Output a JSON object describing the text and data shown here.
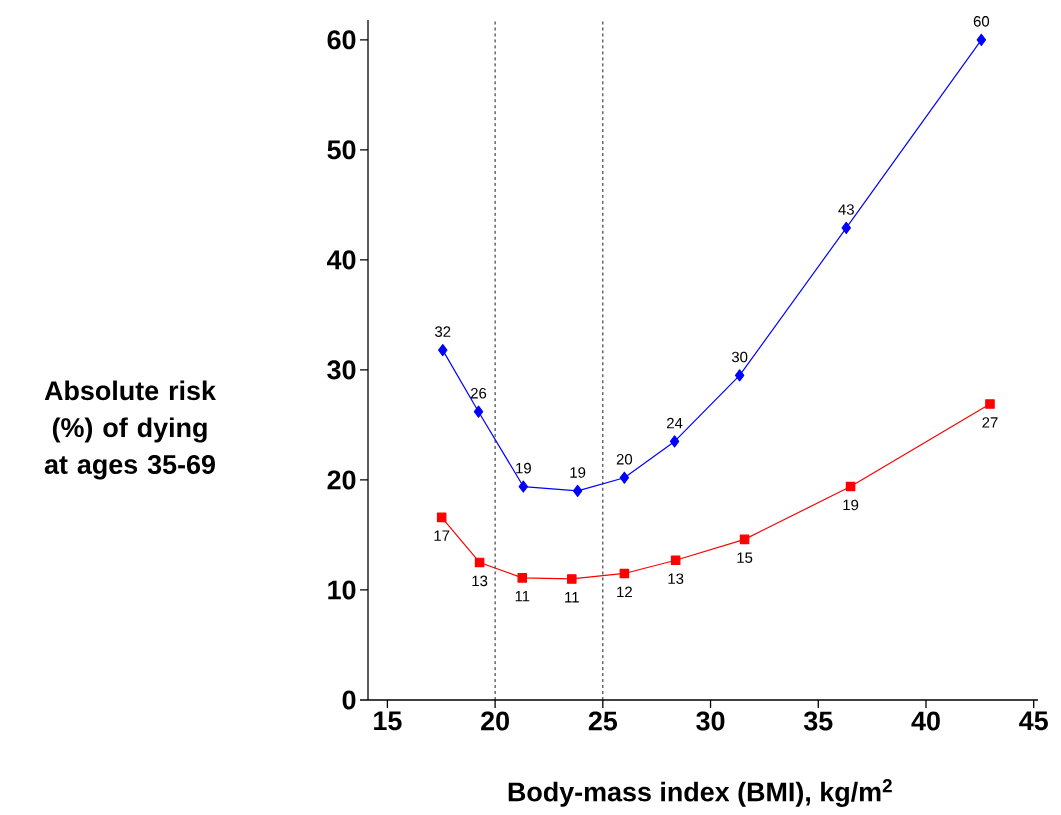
{
  "chart_data": {
    "type": "line",
    "xlabel": "Body-mass index (BMI), kg/m$^{2}$",
    "ylabel": "Absolute risk (%) of dying at ages 35-69",
    "xlim": [
      14.1,
      45.2
    ],
    "ylim": [
      0,
      61.8
    ],
    "xticks": [
      15,
      20,
      25,
      30,
      35,
      40,
      45
    ],
    "yticks": [
      0,
      10,
      20,
      30,
      40,
      50,
      60
    ],
    "grid": false,
    "line_style": "solid",
    "ref_lines": [
      {
        "axis": "x",
        "value": 20,
        "color": "#000000",
        "line_style": "dashed"
      },
      {
        "axis": "x",
        "value": 25,
        "color": "#000000",
        "line_style": "dashed"
      }
    ],
    "series": [
      {
        "color": "#0000ff",
        "marker": "diamond",
        "x": [
          17.57,
          19.23,
          21.31,
          23.83,
          26.0,
          28.33,
          31.35,
          36.3,
          42.57
        ],
        "values": [
          31.8,
          26.2,
          19.4,
          19.0,
          20.2,
          23.5,
          29.5,
          42.9,
          60.0
        ],
        "value_labels": [
          "32",
          "26",
          "19",
          "19",
          "20",
          "24",
          "30",
          "43",
          "60"
        ]
      },
      {
        "color": "#ff0000",
        "marker": "square",
        "x": [
          17.52,
          19.28,
          21.26,
          23.56,
          26.0,
          28.38,
          31.58,
          36.5,
          42.97
        ],
        "values": [
          16.6,
          12.5,
          11.1,
          11.0,
          11.5,
          12.7,
          14.6,
          19.4,
          26.9
        ],
        "value_labels": [
          "17",
          "13",
          "11",
          "11",
          "12",
          "13",
          "15",
          "19",
          "27"
        ]
      }
    ]
  }
}
